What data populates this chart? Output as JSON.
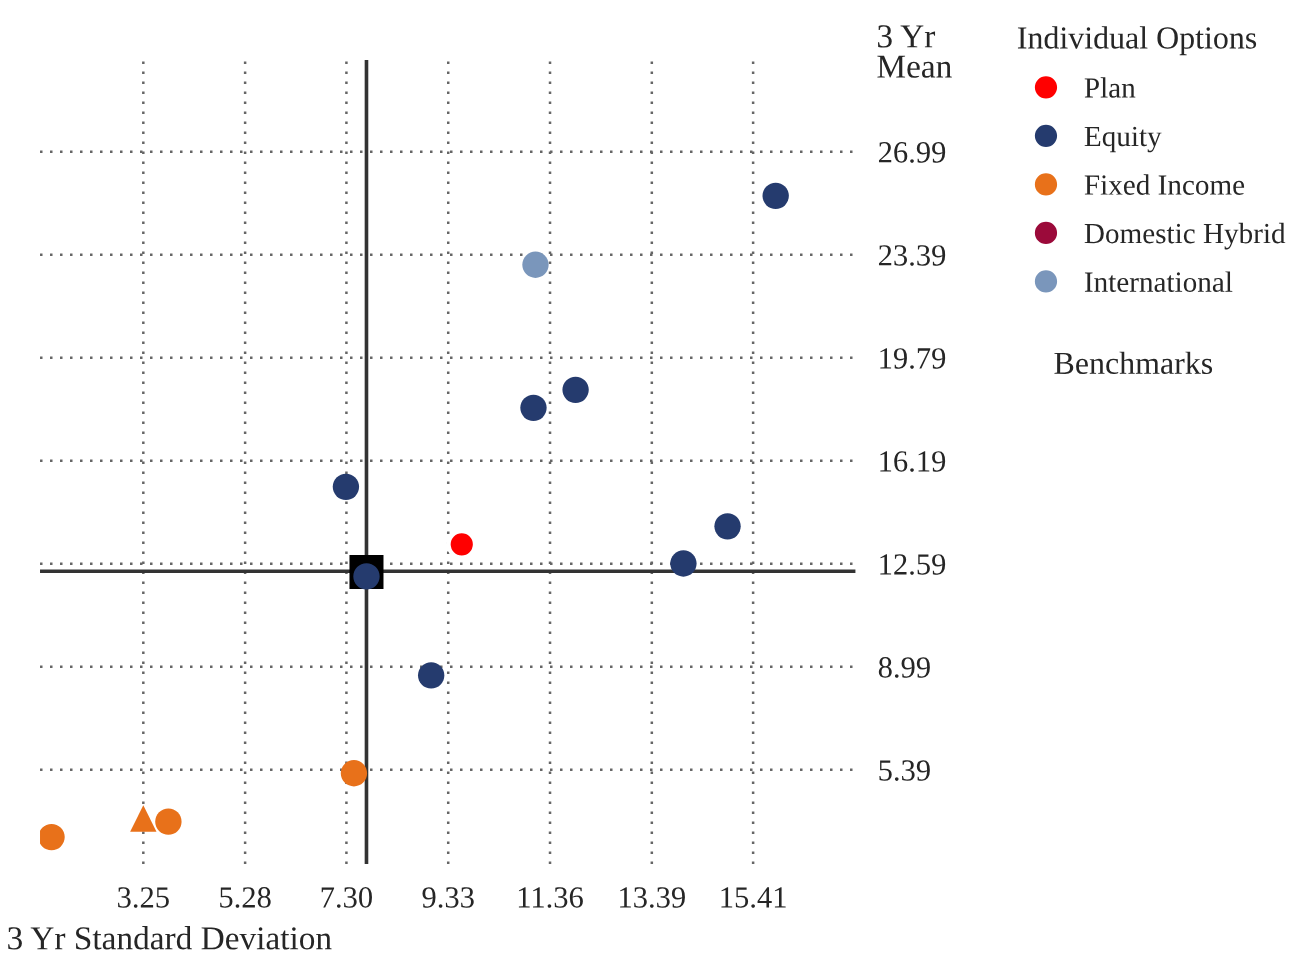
{
  "chart_data": {
    "type": "scatter",
    "xlabel": "3 Yr Standard Deviation",
    "ylabel": "3 Yr\nMean",
    "legend_title": "Individual Options",
    "xlim": [
      1.19,
      17.45
    ],
    "ylim": [
      2.1,
      30.2
    ],
    "xticks": [
      3.25,
      5.28,
      {
        "value": 7.3,
        "label": "7.30"
      },
      9.33,
      11.36,
      13.39,
      15.41
    ],
    "yticks": [
      5.39,
      8.99,
      12.59,
      16.19,
      19.79,
      23.39,
      26.99
    ],
    "grid": true,
    "legend": "right",
    "annotations": [
      "Benchmarks"
    ],
    "ref_lines": [
      {
        "axis": "x",
        "value": 7.7,
        "color": "#333333",
        "line_style": "solid"
      },
      {
        "axis": "y",
        "value": 12.33,
        "color": "#333333",
        "line_style": "solid"
      }
    ],
    "series": [
      {
        "name": "Plan",
        "color": "#ff0000",
        "marker": "circle",
        "x": [
          9.6
        ],
        "values": [
          13.27
        ]
      },
      {
        "name": "Equity",
        "color": "#253b6e",
        "marker": "circle",
        "x": [
          15.86,
          11.03,
          11.87,
          7.29,
          14.9,
          14.02,
          7.7,
          8.99
        ],
        "values": [
          25.45,
          18.04,
          18.67,
          15.28,
          13.9,
          12.6,
          12.15,
          8.69
        ]
      },
      {
        "name": "Fixed Income",
        "color": "#e8711a",
        "marker": "circle",
        "x": [
          7.45,
          3.75,
          1.42
        ],
        "values": [
          5.27,
          3.58,
          3.04
        ]
      },
      {
        "name": "Domestic Hybrid",
        "color": "#9b0a3a",
        "marker": "circle"
      },
      {
        "name": "International",
        "color": "#7a96bb",
        "marker": "circle",
        "x": [
          11.07
        ],
        "values": [
          23.04
        ]
      },
      {
        "color": "#000000",
        "marker": "square",
        "x": [
          7.7
        ],
        "values": [
          12.3
        ]
      },
      {
        "color": "#e8711a",
        "marker": "triangle",
        "x": [
          3.25
        ],
        "values": [
          3.69
        ]
      }
    ]
  }
}
